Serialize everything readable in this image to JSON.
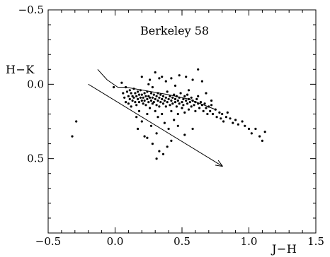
{
  "chart_data": {
    "type": "scatter",
    "title": "Berkeley 58",
    "xlabel": "J−H",
    "ylabel": "H−K",
    "xlim": [
      -0.5,
      1.5
    ],
    "ylim": [
      -0.5,
      1.0
    ],
    "y_inverted": true,
    "grid": false,
    "x_ticks": [
      "−0.5",
      "0.0",
      "0.5",
      "1.0",
      "1.5"
    ],
    "y_ticks": [
      "−0.5",
      "0.0",
      "0.5"
    ],
    "series": [
      {
        "values": [
          [
            -0.32,
            0.35
          ],
          [
            -0.29,
            0.25
          ],
          [
            -0.01,
            0.02
          ],
          [
            0.05,
            -0.01
          ],
          [
            0.06,
            0.06
          ],
          [
            0.07,
            0.09
          ],
          [
            0.08,
            0.02
          ],
          [
            0.08,
            0.12
          ],
          [
            0.09,
            0.05
          ],
          [
            0.1,
            0.08
          ],
          [
            0.1,
            0.13
          ],
          [
            0.11,
            0.04
          ],
          [
            0.11,
            0.1
          ],
          [
            0.12,
            0.06
          ],
          [
            0.12,
            0.15
          ],
          [
            0.13,
            0.08
          ],
          [
            0.13,
            0.11
          ],
          [
            0.14,
            0.03
          ],
          [
            0.14,
            0.09
          ],
          [
            0.15,
            0.06
          ],
          [
            0.15,
            0.12
          ],
          [
            0.16,
            0.08
          ],
          [
            0.16,
            0.14
          ],
          [
            0.16,
            0.22
          ],
          [
            0.17,
            0.05
          ],
          [
            0.17,
            0.1
          ],
          [
            0.17,
            0.3
          ],
          [
            0.18,
            0.07
          ],
          [
            0.18,
            0.12
          ],
          [
            0.18,
            0.18
          ],
          [
            0.19,
            0.09
          ],
          [
            0.19,
            0.04
          ],
          [
            0.2,
            0.11
          ],
          [
            0.2,
            0.07
          ],
          [
            0.2,
            0.25
          ],
          [
            0.21,
            0.13
          ],
          [
            0.21,
            0.09
          ],
          [
            0.22,
            0.06
          ],
          [
            0.22,
            0.11
          ],
          [
            0.22,
            0.35
          ],
          [
            0.23,
            0.08
          ],
          [
            0.23,
            0.14
          ],
          [
            0.24,
            0.1
          ],
          [
            0.24,
            0.05
          ],
          [
            0.24,
            0.2
          ],
          [
            0.25,
            0.12
          ],
          [
            0.25,
            0.08
          ],
          [
            0.26,
            0.16
          ],
          [
            0.26,
            0.09
          ],
          [
            0.26,
            -0.03
          ],
          [
            0.27,
            0.11
          ],
          [
            0.27,
            0.06
          ],
          [
            0.27,
            0.28
          ],
          [
            0.28,
            0.13
          ],
          [
            0.28,
            0.09
          ],
          [
            0.28,
            0.4
          ],
          [
            0.29,
            0.07
          ],
          [
            0.29,
            0.12
          ],
          [
            0.3,
            0.1
          ],
          [
            0.3,
            0.18
          ],
          [
            0.3,
            -0.08
          ],
          [
            0.31,
            0.08
          ],
          [
            0.31,
            0.14
          ],
          [
            0.31,
            0.33
          ],
          [
            0.32,
            0.11
          ],
          [
            0.32,
            0.06
          ],
          [
            0.32,
            0.22
          ],
          [
            0.33,
            0.09
          ],
          [
            0.33,
            0.15
          ],
          [
            0.33,
            0.45
          ],
          [
            0.34,
            0.12
          ],
          [
            0.34,
            0.07
          ],
          [
            0.35,
            0.1
          ],
          [
            0.35,
            0.2
          ],
          [
            0.35,
            -0.05
          ],
          [
            0.36,
            0.13
          ],
          [
            0.36,
            0.08
          ],
          [
            0.37,
            0.11
          ],
          [
            0.37,
            0.26
          ],
          [
            0.38,
            0.09
          ],
          [
            0.38,
            0.15
          ],
          [
            0.39,
            0.12
          ],
          [
            0.39,
            0.05
          ],
          [
            0.4,
            0.1
          ],
          [
            0.4,
            0.3
          ],
          [
            0.41,
            0.14
          ],
          [
            0.41,
            0.08
          ],
          [
            0.42,
            0.11
          ],
          [
            0.42,
            0.18
          ],
          [
            0.43,
            0.09
          ],
          [
            0.43,
            0.13
          ],
          [
            0.44,
            0.07
          ],
          [
            0.44,
            0.24
          ],
          [
            0.45,
            0.12
          ],
          [
            0.45,
            0.1
          ],
          [
            0.46,
            0.15
          ],
          [
            0.46,
            0.08
          ],
          [
            0.47,
            0.11
          ],
          [
            0.47,
            0.2
          ],
          [
            0.48,
            0.13
          ],
          [
            0.48,
            0.09
          ],
          [
            0.49,
            0.06
          ],
          [
            0.5,
            0.12
          ],
          [
            0.5,
            0.16
          ],
          [
            0.51,
            0.1
          ],
          [
            0.51,
            0.14
          ],
          [
            0.52,
            0.08
          ],
          [
            0.52,
            0.19
          ],
          [
            0.53,
            0.11
          ],
          [
            0.54,
            0.13
          ],
          [
            0.54,
            0.07
          ],
          [
            0.55,
            0.1
          ],
          [
            0.55,
            0.17
          ],
          [
            0.56,
            0.12
          ],
          [
            0.57,
            0.15
          ],
          [
            0.57,
            0.09
          ],
          [
            0.58,
            0.11
          ],
          [
            0.59,
            0.14
          ],
          [
            0.6,
            0.12
          ],
          [
            0.6,
            0.18
          ],
          [
            0.61,
            0.1
          ],
          [
            0.62,
            0.13
          ],
          [
            0.63,
            0.16
          ],
          [
            0.64,
            0.12
          ],
          [
            0.65,
            0.14
          ],
          [
            0.66,
            0.18
          ],
          [
            0.67,
            0.13
          ],
          [
            0.68,
            0.16
          ],
          [
            0.69,
            0.2
          ],
          [
            0.7,
            0.15
          ],
          [
            0.71,
            0.18
          ],
          [
            0.72,
            0.14
          ],
          [
            0.73,
            0.2
          ],
          [
            0.75,
            0.17
          ],
          [
            0.76,
            0.22
          ],
          [
            0.78,
            0.19
          ],
          [
            0.79,
            0.23
          ],
          [
            0.8,
            0.2
          ],
          [
            0.81,
            0.25
          ],
          [
            0.83,
            0.22
          ],
          [
            0.84,
            0.19
          ],
          [
            0.86,
            0.23
          ],
          [
            0.88,
            0.26
          ],
          [
            0.9,
            0.24
          ],
          [
            0.92,
            0.27
          ],
          [
            0.95,
            0.25
          ],
          [
            0.97,
            0.28
          ],
          [
            1.0,
            0.3
          ],
          [
            1.02,
            0.33
          ],
          [
            1.05,
            0.3
          ],
          [
            1.08,
            0.35
          ],
          [
            1.1,
            0.38
          ],
          [
            1.12,
            0.32
          ],
          [
            0.2,
            -0.05
          ],
          [
            0.25,
            0.0
          ],
          [
            0.28,
            0.02
          ],
          [
            0.33,
            -0.04
          ],
          [
            0.38,
            -0.02
          ],
          [
            0.42,
            -0.04
          ],
          [
            0.45,
            0.01
          ],
          [
            0.48,
            -0.06
          ],
          [
            0.53,
            -0.05
          ],
          [
            0.58,
            -0.03
          ],
          [
            0.62,
            -0.1
          ],
          [
            0.65,
            -0.02
          ],
          [
            0.47,
            0.28
          ],
          [
            0.52,
            0.34
          ],
          [
            0.31,
            0.5
          ],
          [
            0.42,
            0.38
          ],
          [
            0.58,
            0.3
          ],
          [
            0.39,
            0.42
          ],
          [
            0.24,
            0.36
          ],
          [
            0.36,
            0.47
          ],
          [
            0.68,
            0.06
          ],
          [
            0.72,
            0.11
          ],
          [
            0.55,
            0.04
          ],
          [
            0.62,
            0.08
          ]
        ]
      }
    ],
    "lines": [
      {
        "kind": "path",
        "points": [
          [
            -0.13,
            -0.1
          ],
          [
            -0.06,
            -0.03
          ],
          [
            0.02,
            0.02
          ],
          [
            0.08,
            0.02
          ],
          [
            0.4,
            0.07
          ],
          [
            0.55,
            0.1
          ],
          [
            0.75,
            0.17
          ]
        ]
      },
      {
        "kind": "arrow",
        "points": [
          [
            -0.2,
            0.0
          ],
          [
            0.8,
            0.55
          ]
        ]
      }
    ],
    "colors": {
      "ink": "#000000",
      "background": "#ffffff"
    }
  }
}
